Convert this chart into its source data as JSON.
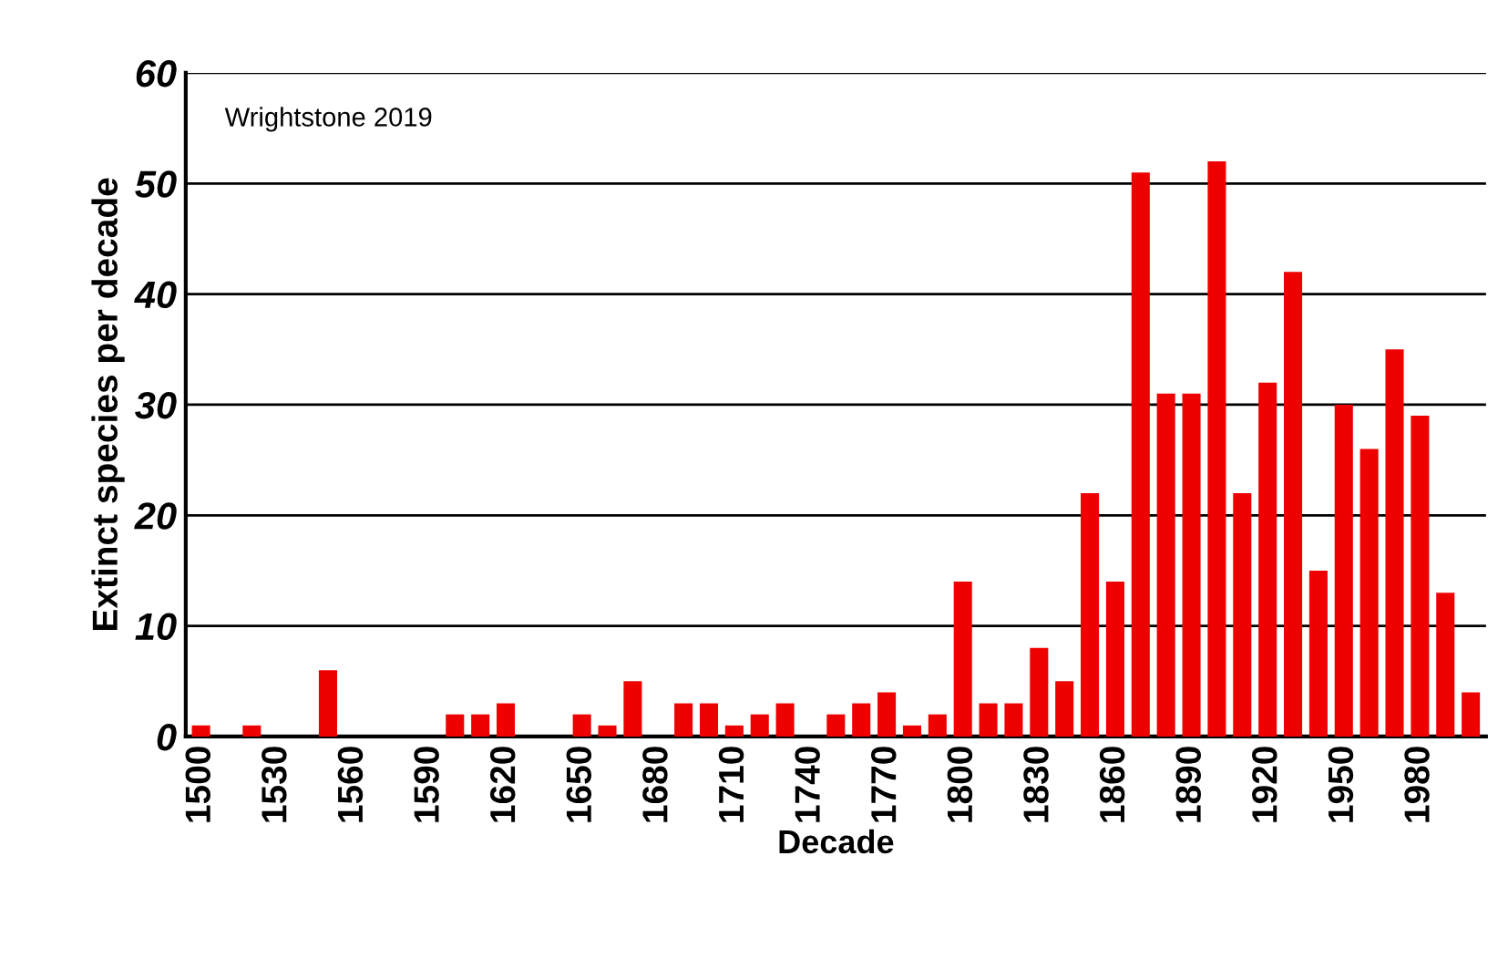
{
  "chart_data": {
    "type": "bar",
    "xlabel": "Decade",
    "ylabel": "Extinct species per decade",
    "annotations": [
      "Wrightstone 2019"
    ],
    "categories": [
      "1500",
      null,
      null,
      "1530",
      null,
      null,
      "1560",
      null,
      null,
      "1590",
      null,
      null,
      "1620",
      null,
      null,
      "1650",
      null,
      null,
      "1680",
      null,
      null,
      "1710",
      null,
      null,
      "1740",
      null,
      null,
      "1770",
      null,
      null,
      "1800",
      null,
      null,
      "1830",
      null,
      null,
      "1860",
      null,
      null,
      "1890",
      null,
      null,
      "1920",
      null,
      null,
      "1950",
      null,
      null,
      "1980",
      null,
      null
    ],
    "values": [
      1,
      0,
      1,
      0,
      0,
      6,
      0,
      0,
      0,
      0,
      2,
      2,
      3,
      0,
      0,
      2,
      1,
      5,
      0,
      3,
      3,
      1,
      2,
      3,
      0,
      2,
      3,
      4,
      1,
      2,
      14,
      3,
      3,
      8,
      5,
      22,
      14,
      51,
      31,
      31,
      52,
      22,
      32,
      42,
      15,
      30,
      26,
      35,
      29,
      13,
      4
    ],
    "color": "#ee0000",
    "ylim": [
      0,
      60
    ],
    "yticks": [
      0,
      10,
      20,
      30,
      40,
      50,
      60
    ],
    "grid": "y"
  }
}
